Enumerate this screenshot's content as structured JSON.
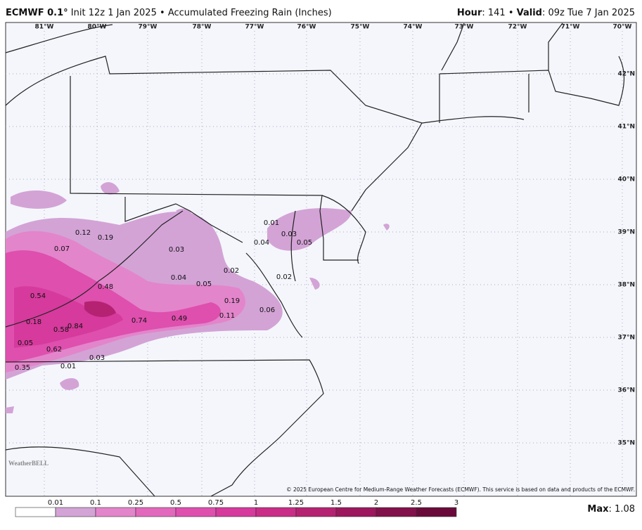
{
  "header": {
    "model": "ECMWF 0.1°",
    "init": "Init 12z 1 Jan 2025",
    "separator": "•",
    "product": "Accumulated Freezing Rain (Inches)",
    "hour_label": "Hour",
    "hour_value": ": 141",
    "separator_right": "•",
    "valid_label": "Valid",
    "valid_value": ": 09z Tue 7 Jan 2025"
  },
  "map": {
    "longitudes": [
      "81°W",
      "80°W",
      "79°W",
      "78°W",
      "77°W",
      "76°W",
      "75°W",
      "74°W",
      "73°W",
      "72°W",
      "71°W",
      "70°W"
    ],
    "latitudes": [
      "42°N",
      "41°N",
      "40°N",
      "39°N",
      "38°N",
      "37°N",
      "36°N",
      "35°N"
    ],
    "labels": [
      "0.12",
      "0.19",
      "0.07",
      "0.03",
      "0.01",
      "0.03",
      "0.04",
      "0.05",
      "0.02",
      "0.04",
      "0.05",
      "0.48",
      "0.02",
      "0.54",
      "0.19",
      "0.06",
      "0.18",
      "0.58",
      "0.84",
      "0.74",
      "0.49",
      "0.11",
      "0.05",
      "0.62",
      "0.03",
      "0.01",
      "0.35"
    ],
    "copyright": "© 2025 European Centre for Medium-Range Weather Forecasts (ECMWF). This service is based on data and products of the ECMWF.",
    "logo": "WeatherBELL"
  },
  "legend": {
    "ticks": [
      "0.01",
      "0.1",
      "0.25",
      "0.5",
      "0.75",
      "1",
      "1.25",
      "1.5",
      "2",
      "2.5",
      "3"
    ],
    "colors": [
      "#ffffff",
      "#d3a3d6",
      "#e385cb",
      "#e268bd",
      "#de4fae",
      "#d53a9c",
      "#c92d88",
      "#b52272",
      "#9c175d",
      "#82104a",
      "#6a0a3a"
    ],
    "max_label": "Max",
    "max_value": ": 1.08"
  }
}
